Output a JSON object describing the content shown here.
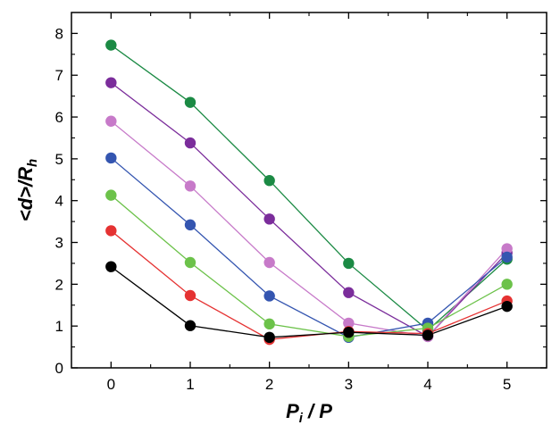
{
  "chart_data": {
    "type": "line",
    "title": "",
    "xlabel": {
      "main": "P",
      "sub": "i",
      "rest": " / P"
    },
    "ylabel": {
      "main": "<d>/R",
      "sub": "h"
    },
    "x": [
      0,
      1,
      2,
      3,
      4,
      5
    ],
    "x_ticks": [
      "0",
      "1",
      "2",
      "3",
      "4",
      "5"
    ],
    "y_ticks": [
      "0",
      "1",
      "2",
      "3",
      "4",
      "5",
      "6",
      "7",
      "8"
    ],
    "xlim": [
      -0.5,
      5.5
    ],
    "ylim": [
      0,
      8.5
    ],
    "grid": false,
    "series": [
      {
        "color": "#1b8a44",
        "values": [
          7.72,
          6.35,
          4.48,
          2.5,
          0.9,
          2.6
        ]
      },
      {
        "color": "#7b2d9b",
        "values": [
          6.82,
          5.38,
          3.56,
          1.8,
          0.75,
          2.75
        ]
      },
      {
        "color": "#c77ac9",
        "values": [
          5.9,
          4.35,
          2.52,
          1.07,
          0.75,
          2.85
        ]
      },
      {
        "color": "#3455b0",
        "values": [
          5.02,
          3.42,
          1.72,
          0.73,
          1.07,
          2.65
        ]
      },
      {
        "color": "#6cc24a",
        "values": [
          4.13,
          2.52,
          1.05,
          0.75,
          0.95,
          2.0
        ]
      },
      {
        "color": "#e53232",
        "values": [
          3.28,
          1.73,
          0.68,
          0.87,
          0.82,
          1.6
        ]
      },
      {
        "color": "#000000",
        "values": [
          2.42,
          1.01,
          0.73,
          0.85,
          0.78,
          1.47
        ]
      }
    ]
  }
}
